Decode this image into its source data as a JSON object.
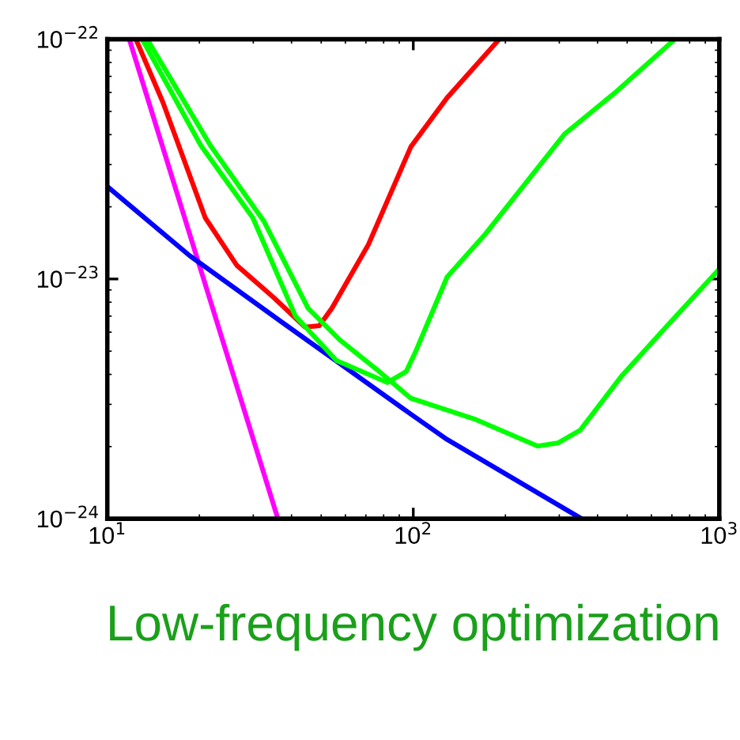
{
  "chart_data": {
    "type": "line",
    "xlabel": "Low-frequency optimization",
    "log": "xy",
    "grid": false,
    "legend": false,
    "xlim": [
      10,
      1000
    ],
    "xticks": [
      {
        "value": 10,
        "label": "10$^{1}$"
      },
      {
        "value": 100,
        "label": "10$^{2}$"
      },
      {
        "value": 1000,
        "label": "10$^{3}$"
      }
    ],
    "ylim": [
      1e-24,
      1e-22
    ],
    "yticks": [
      {
        "value": 1e-24,
        "label": "10$^{−24}$"
      },
      {
        "value": 1e-23,
        "label": "10$^{−23}$"
      },
      {
        "value": 1e-22,
        "label": "10$^{−22}$"
      }
    ],
    "series": [
      {
        "color": "#ff00ff",
        "x": [
          11.8,
          36.1
        ],
        "values": [
          1e-22,
          1e-24
        ]
      },
      {
        "color": "#0000ff",
        "x": [
          10,
          18.6,
          37.9,
          98.2,
          129,
          354.8
        ],
        "values": [
          2.43e-23,
          1.25e-23,
          6.49e-24,
          2.73e-24,
          2.14e-24,
          1e-24
        ]
      },
      {
        "color": "#ff0000",
        "x": [
          12.4,
          15.2,
          20.9,
          26.5,
          34.9,
          44.3,
          49.3,
          54.2,
          71.3,
          98.2,
          129,
          191
        ],
        "values": [
          1e-22,
          5.45e-23,
          1.8e-23,
          1.14e-23,
          8.39e-24,
          6.3e-24,
          6.38e-24,
          7.55e-24,
          1.39e-23,
          3.56e-23,
          5.7e-23,
          1e-22
        ]
      },
      {
        "color": "#00ff00",
        "x": [
          13.0,
          20.2,
          29.9,
          41.2,
          56.1,
          82.2,
          94.8,
          102,
          129,
          172,
          312,
          461,
          716
        ],
        "values": [
          1e-22,
          3.61e-23,
          1.8e-23,
          7e-24,
          4.57e-24,
          3.7e-24,
          4.11e-24,
          5.01e-24,
          1.02e-23,
          1.54e-23,
          4.02e-23,
          6.05e-23,
          1e-22
        ]
      },
      {
        "color": "#00ff00",
        "x": [
          13.5,
          21.7,
          32.5,
          45.3,
          57.5,
          77.4,
          98.2,
          158,
          255,
          297,
          351,
          479,
          684,
          1000
        ],
        "values": [
          1e-22,
          3.61e-23,
          1.74e-23,
          7.55e-24,
          5.57e-24,
          4.11e-24,
          3.18e-24,
          2.61e-24,
          2.01e-24,
          2.07e-24,
          2.34e-24,
          3.93e-24,
          6.49e-24,
          1.1e-23
        ]
      }
    ]
  }
}
